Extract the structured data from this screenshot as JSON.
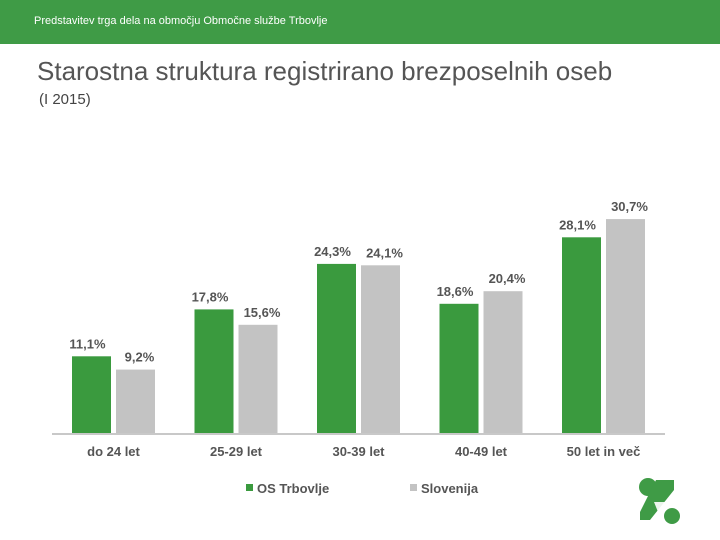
{
  "header": {
    "text": "Predstavitev trga dela na območju Območne službe Trbovlje"
  },
  "slide": {
    "title": "Starostna struktura registrirano brezposelnih oseb",
    "subtitle": "(I 2015)"
  },
  "colors": {
    "brand": "#3f9b46",
    "series1": "#3a9a3e",
    "series2": "#c3c3c3"
  },
  "chart_data": {
    "type": "bar",
    "categories": [
      "do 24 let",
      "25-29 let",
      "30-39 let",
      "40-49 let",
      "50 let in več"
    ],
    "series": [
      {
        "name": "OS Trbovlje",
        "values": [
          11.1,
          17.8,
          24.3,
          18.6,
          28.1
        ],
        "labels": [
          "11,1%",
          "17,8%",
          "24,3%",
          "18,6%",
          "28,1%"
        ]
      },
      {
        "name": "Slovenija",
        "values": [
          9.2,
          15.6,
          24.1,
          20.4,
          30.7
        ],
        "labels": [
          "9,2%",
          "15,6%",
          "24,1%",
          "20,4%",
          "30,7%"
        ]
      }
    ],
    "ylim": [
      0,
      31
    ],
    "grid": false,
    "legend": "bottom"
  }
}
